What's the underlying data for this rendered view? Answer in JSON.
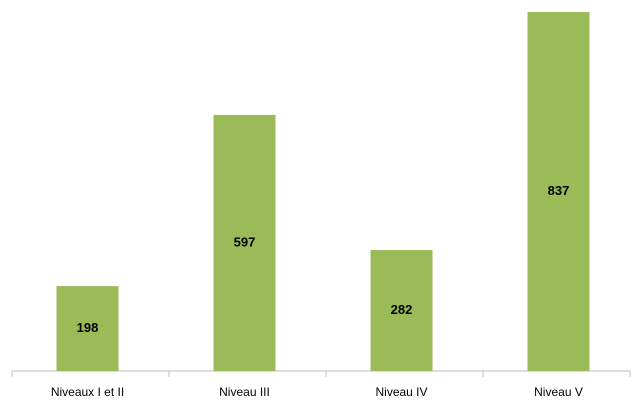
{
  "chart_data": {
    "type": "bar",
    "categories": [
      "Niveaux I et II",
      "Niveau III",
      "Niveau IV",
      "Niveau V"
    ],
    "values": [
      198,
      597,
      282,
      837
    ],
    "color": "#9bbb59"
  }
}
